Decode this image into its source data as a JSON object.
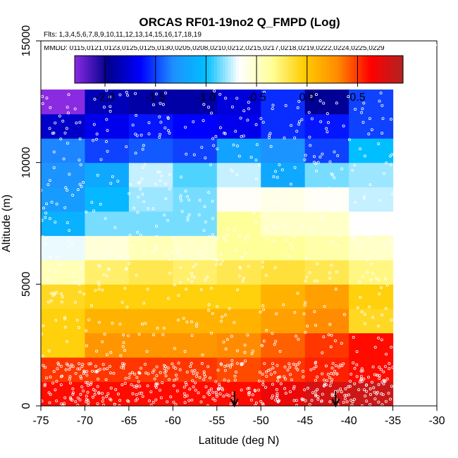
{
  "chart_data": {
    "type": "heatmap",
    "title": "ORCAS RF01-19no2 Q_FMPD (Log)",
    "flights_line": "Flts: 1,3,4,5,6,7,8,9,10,11,12,13,14,15,16,17,18,19",
    "dates_line": "MMDD: 0115,0121,0123,0125,0125,0130,0205,0208,0210,0212,0215,0217,0218,0219,0222,0224,0225,0229",
    "xlabel": "Latitude (deg N)",
    "ylabel": "Altitude (m)",
    "xlim": [
      -75,
      -30
    ],
    "ylim": [
      0,
      15000
    ],
    "x_ticks": [
      -75,
      -70,
      -65,
      -60,
      -55,
      -50,
      -45,
      -40,
      -35,
      -30
    ],
    "y_ticks": [
      0,
      5000,
      10000,
      15000
    ],
    "colorbar": {
      "range": [
        -2.3,
        0.95
      ],
      "ticks": [
        -2.0,
        -1.5,
        -1.0,
        -0.5,
        0.0,
        0.5
      ],
      "tick_labels": [
        "-2.0",
        "-1.5",
        "-1.0",
        "-0.5",
        "0.0",
        "0.5"
      ],
      "stops": [
        "#8a2be2",
        "#00008b",
        "#0000ff",
        "#1e90ff",
        "#00bfff",
        "#ffffff",
        "#ffff99",
        "#ffcc00",
        "#ff8c00",
        "#ff0000",
        "#b22222"
      ]
    },
    "lat_bins": [
      -75,
      -70,
      -65,
      -60,
      -55,
      -50,
      -45,
      -40,
      -35
    ],
    "alt_bin_size": 1000,
    "grid_values": [
      [
        0.6,
        0.6,
        0.6,
        0.6,
        0.6,
        0.7,
        0.8,
        0.85
      ],
      [
        0.5,
        0.5,
        0.5,
        0.5,
        0.45,
        0.5,
        0.55,
        0.6
      ],
      [
        -0.05,
        0.25,
        0.25,
        0.25,
        0.3,
        0.4,
        0.5,
        0.6
      ],
      [
        -0.05,
        0.1,
        0.1,
        0.1,
        0.1,
        0.2,
        0.3,
        -0.1
      ],
      [
        -0.1,
        -0.05,
        -0.05,
        -0.05,
        -0.05,
        0.1,
        0.2,
        -0.05
      ],
      [
        -0.45,
        -0.25,
        -0.2,
        -0.25,
        -0.2,
        -0.15,
        -0.2,
        -0.3
      ],
      [
        -0.7,
        -0.55,
        -0.45,
        -0.5,
        -0.35,
        -0.35,
        -0.4,
        -0.5
      ],
      [
        -1.1,
        -0.85,
        -0.85,
        -0.85,
        -0.35,
        -0.5,
        -0.5,
        null
      ],
      [
        -1.25,
        -1.05,
        -0.8,
        -0.85,
        -0.65,
        -0.6,
        -0.65,
        -0.75
      ],
      [
        -1.3,
        -1.15,
        -0.75,
        -0.9,
        -0.75,
        -1.15,
        -0.85,
        -0.8
      ],
      [
        -1.35,
        -1.5,
        -1.45,
        -1.5,
        -1.2,
        -1.3,
        -1.5,
        -1.0
      ],
      [
        -1.8,
        -1.7,
        -1.6,
        -1.65,
        -1.7,
        -1.55,
        -1.6,
        -1.5
      ],
      [
        -2.3,
        -1.85,
        -1.9,
        -1.9,
        -1.75,
        -1.55,
        -1.95,
        -1.5
      ]
    ],
    "arrows_at_latitude": [
      -53,
      -41.5
    ]
  }
}
